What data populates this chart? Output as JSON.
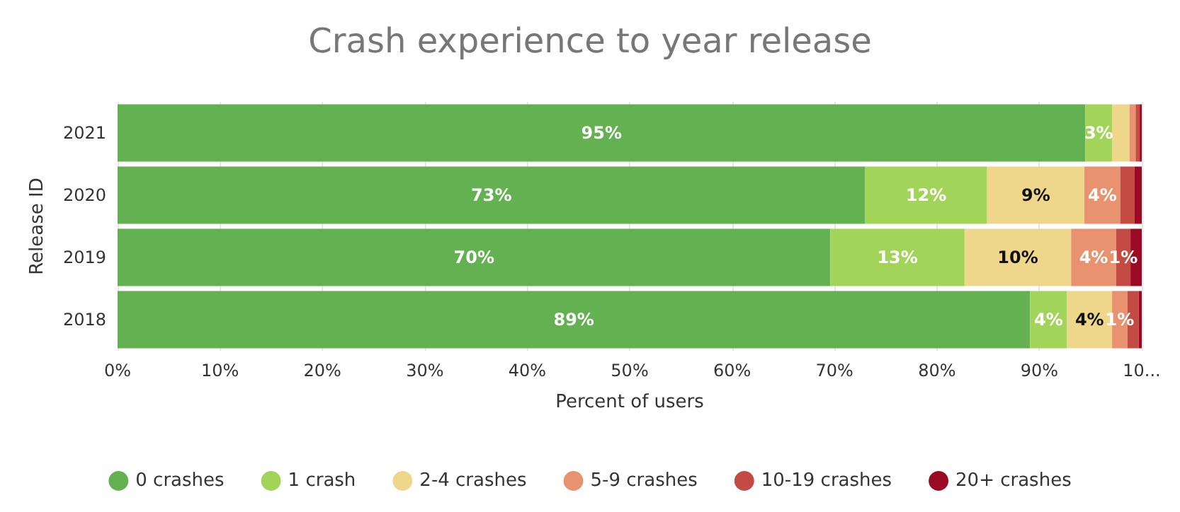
{
  "chart_data": {
    "type": "bar",
    "orientation": "horizontal",
    "stacked": true,
    "title": "Crash experience to year release",
    "xlabel": "Percent of users",
    "ylabel": "Release ID",
    "categories": [
      "2021",
      "2020",
      "2019",
      "2018"
    ],
    "series": [
      {
        "name": "0 crashes",
        "color": "#63b150",
        "values": [
          94.5,
          73.0,
          69.6,
          89.1
        ],
        "value_labels": [
          "95%",
          "73%",
          "70%",
          "89%"
        ]
      },
      {
        "name": "1 crash",
        "color": "#a2d45a",
        "values": [
          2.6,
          11.9,
          13.1,
          3.6
        ],
        "value_labels": [
          "3%",
          "12%",
          "13%",
          "4%"
        ]
      },
      {
        "name": "2-4 crashes",
        "color": "#eed78a",
        "values": [
          1.7,
          9.5,
          10.4,
          4.4
        ],
        "value_labels": [
          null,
          "9%",
          "10%",
          "4%"
        ]
      },
      {
        "name": "5-9 crashes",
        "color": "#e8926f",
        "values": [
          0.6,
          3.5,
          4.4,
          1.5
        ],
        "value_labels": [
          null,
          "4%",
          "4%",
          "1%"
        ]
      },
      {
        "name": "10-19 crashes",
        "color": "#c44a44",
        "values": [
          0.4,
          1.4,
          1.4,
          1.1
        ],
        "value_labels": [
          null,
          null,
          "1%",
          null
        ]
      },
      {
        "name": "20+ crashes",
        "color": "#9a0a26",
        "values": [
          0.2,
          0.7,
          1.1,
          0.3
        ],
        "value_labels": [
          null,
          null,
          null,
          null
        ]
      }
    ],
    "xlim": [
      0,
      100
    ],
    "xticks": [
      {
        "value": 0,
        "label": "0%"
      },
      {
        "value": 10,
        "label": "10%"
      },
      {
        "value": 20,
        "label": "20%"
      },
      {
        "value": 30,
        "label": "30%"
      },
      {
        "value": 40,
        "label": "40%"
      },
      {
        "value": 50,
        "label": "50%"
      },
      {
        "value": 60,
        "label": "60%"
      },
      {
        "value": 70,
        "label": "70%"
      },
      {
        "value": 80,
        "label": "80%"
      },
      {
        "value": 90,
        "label": "90%"
      },
      {
        "value": 100,
        "label": "10..."
      }
    ],
    "grid": "x",
    "legend": "bottom"
  }
}
